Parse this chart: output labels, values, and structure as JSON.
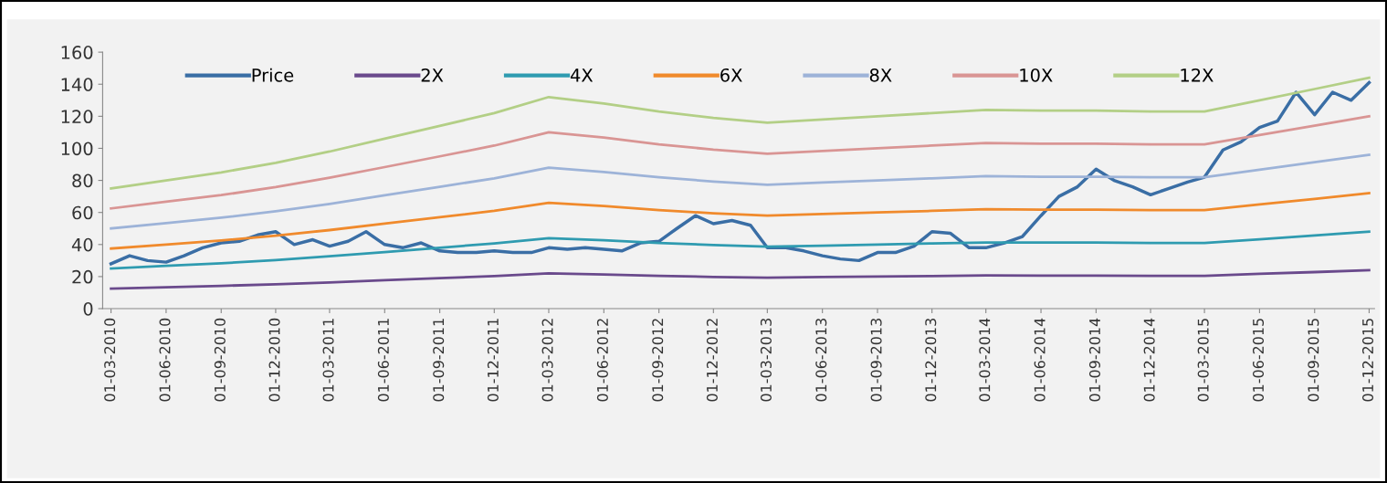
{
  "chart_data": {
    "type": "line",
    "xlim": [
      "2010-02-15",
      "2015-12-10"
    ],
    "xticks": [
      {
        "value": "2010-03-01",
        "label": "01-03-2010"
      },
      {
        "value": "2010-06-01",
        "label": "01-06-2010"
      },
      {
        "value": "2010-09-01",
        "label": "01-09-2010"
      },
      {
        "value": "2010-12-01",
        "label": "01-12-2010"
      },
      {
        "value": "2011-03-01",
        "label": "01-03-2011"
      },
      {
        "value": "2011-06-01",
        "label": "01-06-2011"
      },
      {
        "value": "2011-09-01",
        "label": "01-09-2011"
      },
      {
        "value": "2011-12-01",
        "label": "01-12-2011"
      },
      {
        "value": "2012-03-01",
        "label": "01-03-2012"
      },
      {
        "value": "2012-06-01",
        "label": "01-06-2012"
      },
      {
        "value": "2012-09-01",
        "label": "01-09-2012"
      },
      {
        "value": "2012-12-01",
        "label": "01-12-2012"
      },
      {
        "value": "2013-03-01",
        "label": "01-03-2013"
      },
      {
        "value": "2013-06-01",
        "label": "01-06-2013"
      },
      {
        "value": "2013-09-01",
        "label": "01-09-2013"
      },
      {
        "value": "2013-12-01",
        "label": "01-12-2013"
      },
      {
        "value": "2014-03-01",
        "label": "01-03-2014"
      },
      {
        "value": "2014-06-01",
        "label": "01-06-2014"
      },
      {
        "value": "2014-09-01",
        "label": "01-09-2014"
      },
      {
        "value": "2014-12-01",
        "label": "01-12-2014"
      },
      {
        "value": "2015-03-01",
        "label": "01-03-2015"
      },
      {
        "value": "2015-06-01",
        "label": "01-06-2015"
      },
      {
        "value": "2015-09-01",
        "label": "01-09-2015"
      },
      {
        "value": "2015-12-01",
        "label": "01-12-2015"
      }
    ],
    "ylim": [
      0,
      160
    ],
    "yticks": [
      0,
      20,
      40,
      60,
      80,
      100,
      120,
      140,
      160
    ],
    "grid": false,
    "legend": "top",
    "marker": "none",
    "line_style": "solid",
    "x": [
      "2010-03-01",
      "2010-06-01",
      "2010-09-01",
      "2010-12-01",
      "2011-03-01",
      "2011-06-01",
      "2011-09-01",
      "2011-12-01",
      "2012-03-01",
      "2012-06-01",
      "2012-09-01",
      "2012-12-01",
      "2013-03-01",
      "2013-06-01",
      "2013-09-01",
      "2013-12-01",
      "2014-03-01",
      "2014-06-01",
      "2014-09-01",
      "2014-12-01",
      "2015-03-01",
      "2015-06-01",
      "2015-09-01",
      "2015-12-01"
    ],
    "series": [
      {
        "name": "Price",
        "color": "#3a6ea5",
        "x": [
          "2010-03-01",
          "2010-04-01",
          "2010-05-01",
          "2010-06-01",
          "2010-07-01",
          "2010-08-01",
          "2010-09-01",
          "2010-10-01",
          "2010-11-01",
          "2010-12-01",
          "2011-01-01",
          "2011-02-01",
          "2011-03-01",
          "2011-04-01",
          "2011-05-01",
          "2011-06-01",
          "2011-07-01",
          "2011-08-01",
          "2011-09-01",
          "2011-10-01",
          "2011-11-01",
          "2011-12-01",
          "2012-01-01",
          "2012-02-01",
          "2012-03-01",
          "2012-04-01",
          "2012-05-01",
          "2012-06-01",
          "2012-07-01",
          "2012-08-01",
          "2012-09-01",
          "2012-10-01",
          "2012-11-01",
          "2012-12-01",
          "2013-01-01",
          "2013-02-01",
          "2013-03-01",
          "2013-04-01",
          "2013-05-01",
          "2013-06-01",
          "2013-07-01",
          "2013-08-01",
          "2013-09-01",
          "2013-10-01",
          "2013-11-01",
          "2013-12-01",
          "2014-01-01",
          "2014-02-01",
          "2014-03-01",
          "2014-04-01",
          "2014-05-01",
          "2014-06-01",
          "2014-07-01",
          "2014-08-01",
          "2014-09-01",
          "2014-10-01",
          "2014-11-01",
          "2014-12-01",
          "2015-01-01",
          "2015-02-01",
          "2015-03-01",
          "2015-04-01",
          "2015-05-01",
          "2015-06-01",
          "2015-07-01",
          "2015-08-01",
          "2015-09-01",
          "2015-10-01",
          "2015-11-01",
          "2015-12-01"
        ],
        "values": [
          28,
          33,
          30,
          29,
          33,
          38,
          41,
          42,
          46,
          48,
          40,
          43,
          39,
          42,
          48,
          40,
          38,
          41,
          36,
          35,
          35,
          36,
          35,
          35,
          38,
          37,
          38,
          37,
          36,
          41,
          42,
          50,
          58,
          53,
          55,
          52,
          38,
          38,
          36,
          33,
          31,
          30,
          35,
          35,
          39,
          48,
          47,
          38,
          38,
          41,
          45,
          58,
          70,
          76,
          87,
          80,
          76,
          71,
          75,
          79,
          82,
          99,
          104,
          113,
          117,
          135,
          121,
          135,
          130,
          141
        ]
      },
      {
        "name": "2X",
        "color": "#6a4a8c",
        "values": [
          12.5,
          13.3,
          14.2,
          15.2,
          16.3,
          17.7,
          19,
          20.3,
          22,
          21.3,
          20.5,
          19.8,
          19.3,
          19.7,
          20,
          20.3,
          20.7,
          20.6,
          20.6,
          20.5,
          20.5,
          21.7,
          22.8,
          24
        ]
      },
      {
        "name": "4X",
        "color": "#2f9bb0",
        "values": [
          25,
          26.7,
          28.3,
          30.3,
          32.7,
          35.3,
          38,
          40.7,
          44,
          42.7,
          41,
          39.7,
          38.7,
          39.3,
          40,
          40.7,
          41.3,
          41.2,
          41.2,
          41,
          41,
          43.3,
          45.7,
          48
        ]
      },
      {
        "name": "6X",
        "color": "#f08a2c",
        "values": [
          37.5,
          40,
          42.5,
          45.5,
          49,
          53,
          57,
          61,
          66,
          64,
          61.5,
          59.5,
          58,
          59,
          60,
          61,
          62,
          61.8,
          61.8,
          61.5,
          61.5,
          65,
          68.5,
          72
        ]
      },
      {
        "name": "8X",
        "color": "#9db3d8",
        "values": [
          50,
          53.3,
          56.7,
          60.7,
          65.3,
          70.7,
          76,
          81.3,
          88,
          85.3,
          82,
          79.3,
          77.3,
          78.7,
          80,
          81.3,
          82.7,
          82.3,
          82.3,
          82,
          82,
          86.7,
          91.3,
          96
        ]
      },
      {
        "name": "10X",
        "color": "#d99594",
        "values": [
          62.5,
          66.7,
          70.8,
          75.8,
          81.7,
          88.3,
          95,
          101.7,
          110,
          106.7,
          102.5,
          99.2,
          96.7,
          98.3,
          100,
          101.7,
          103.3,
          102.9,
          102.9,
          102.5,
          102.5,
          108.3,
          114.2,
          120
        ]
      },
      {
        "name": "12X",
        "color": "#b3cf86",
        "values": [
          75,
          80,
          85,
          91,
          98,
          106,
          114,
          122,
          132,
          128,
          123,
          119,
          116,
          118,
          120,
          122,
          124,
          123.5,
          123.5,
          123,
          123,
          130,
          137,
          144
        ]
      }
    ]
  }
}
